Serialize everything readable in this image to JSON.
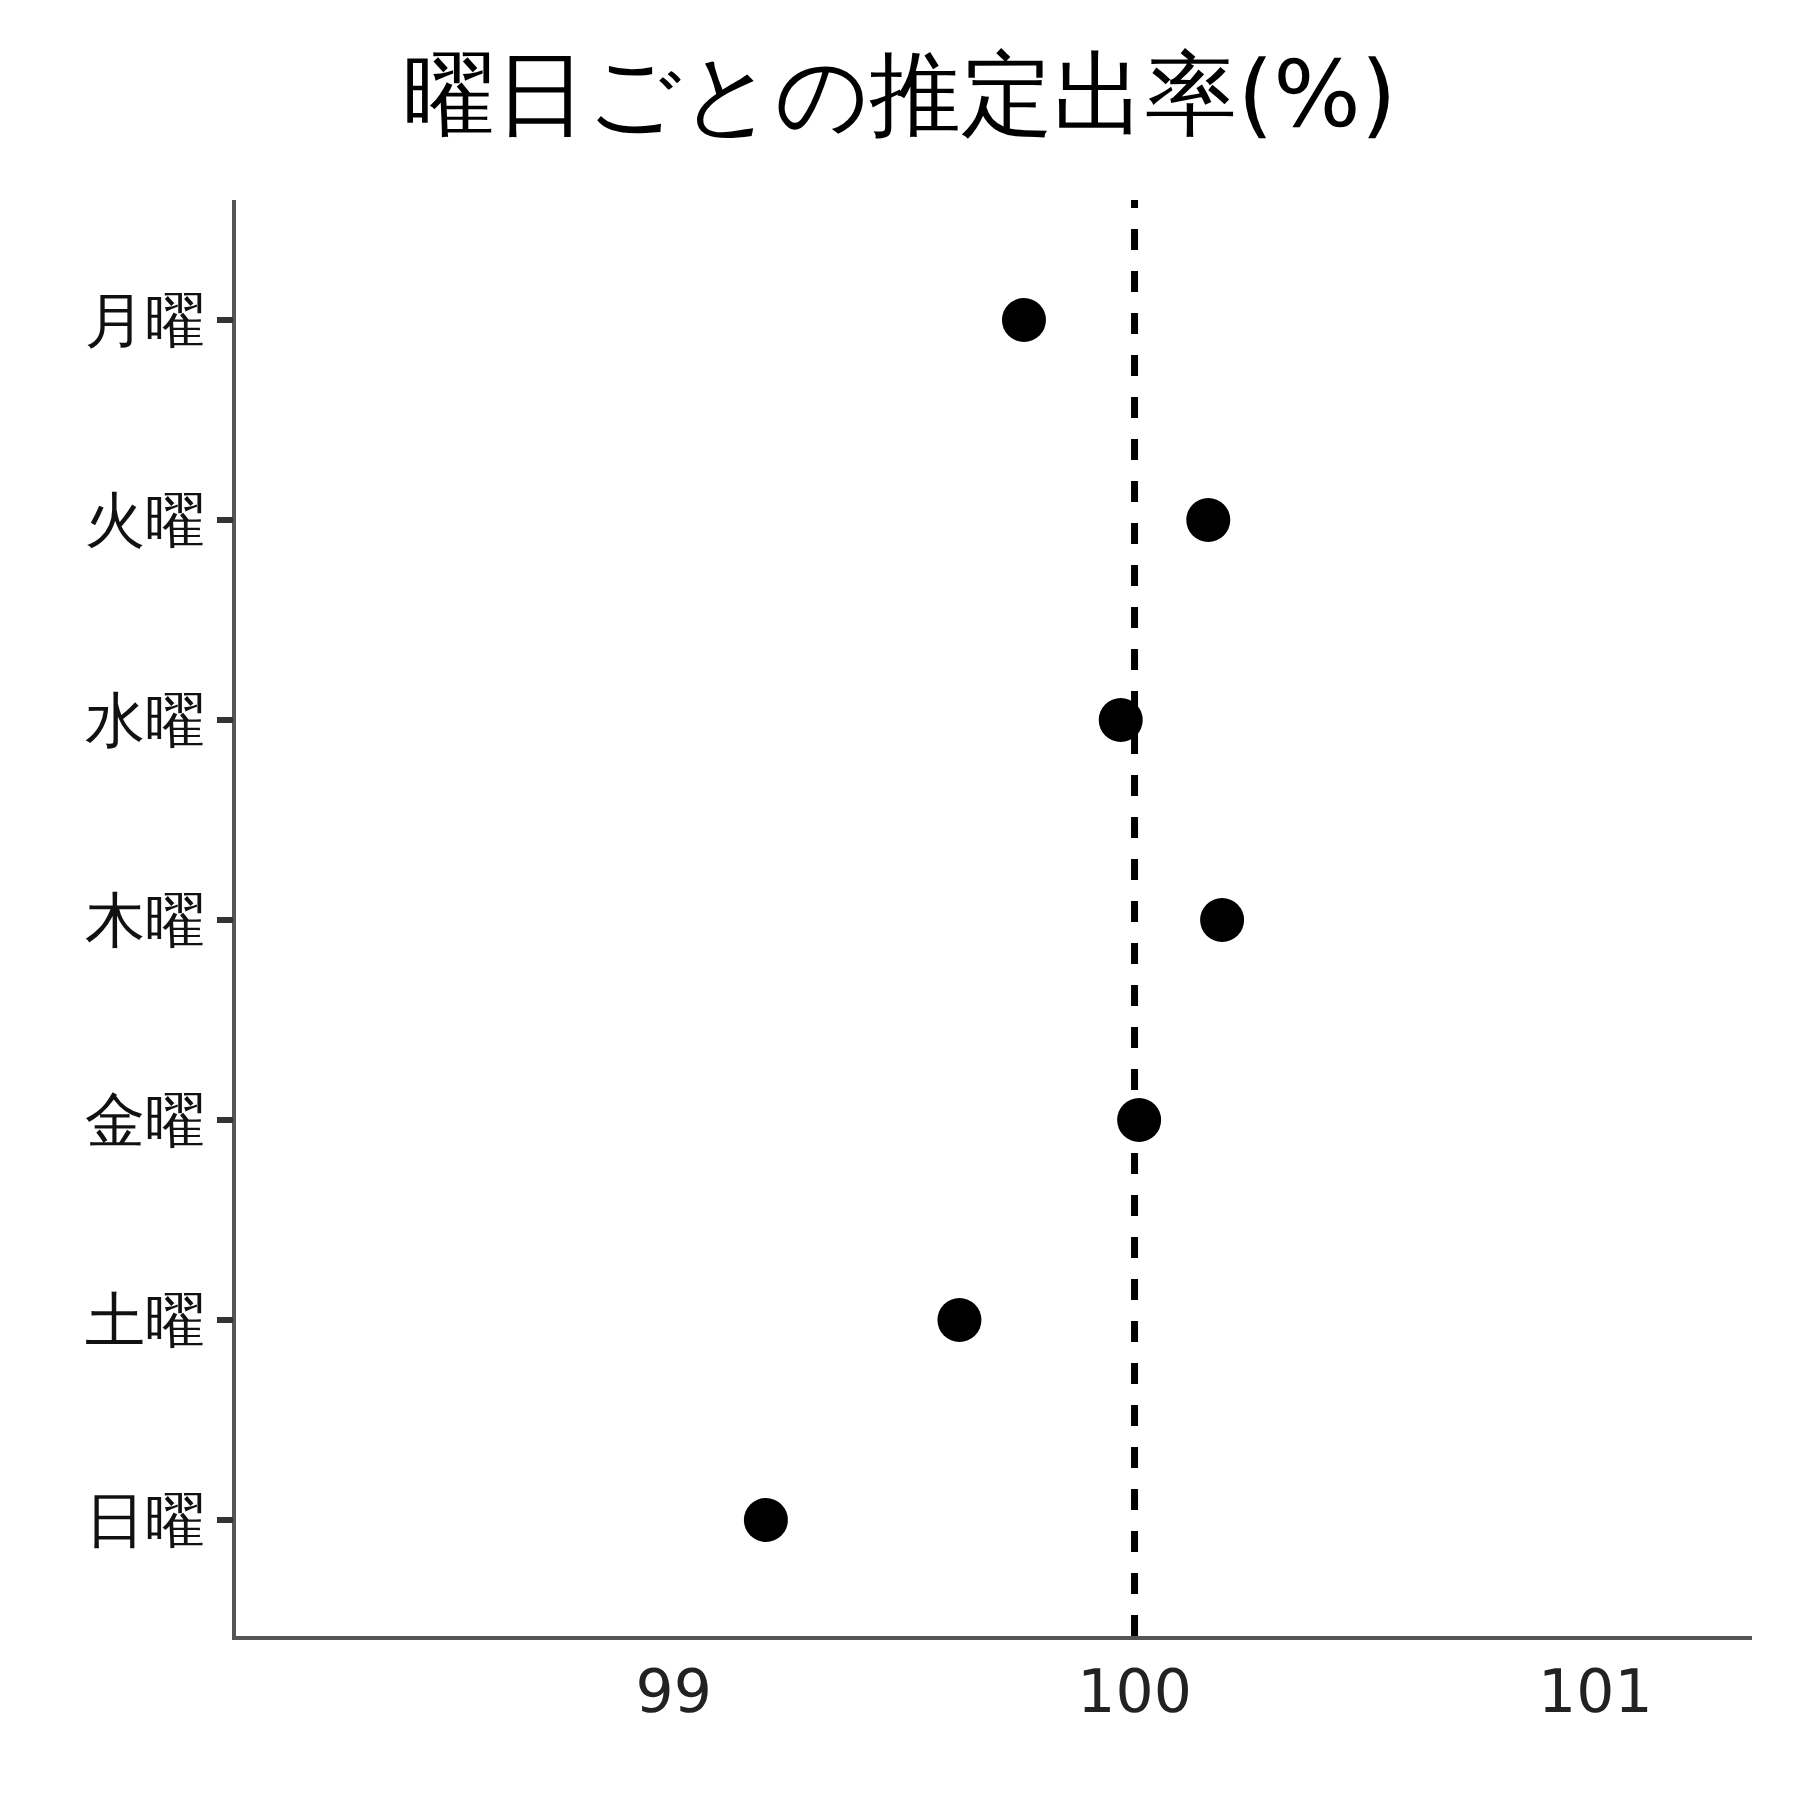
{
  "chart_data": {
    "type": "scatter",
    "title": "曜日ごとの推定出率(%)",
    "categories": [
      "月曜",
      "火曜",
      "水曜",
      "木曜",
      "金曜",
      "土曜",
      "日曜"
    ],
    "orientation": "horizontal",
    "series": [
      {
        "color": "#000000",
        "values": [
          99.76,
          100.16,
          99.97,
          100.19,
          100.01,
          99.62,
          99.2
        ]
      }
    ],
    "xlim": [
      98.05,
      101.34
    ],
    "xticks": [
      99,
      100,
      101
    ],
    "ref_lines": [
      {
        "axis": "x",
        "value": 100,
        "color": "#000000",
        "line_style": "dashed"
      }
    ],
    "grid": false,
    "marker": "circle"
  }
}
